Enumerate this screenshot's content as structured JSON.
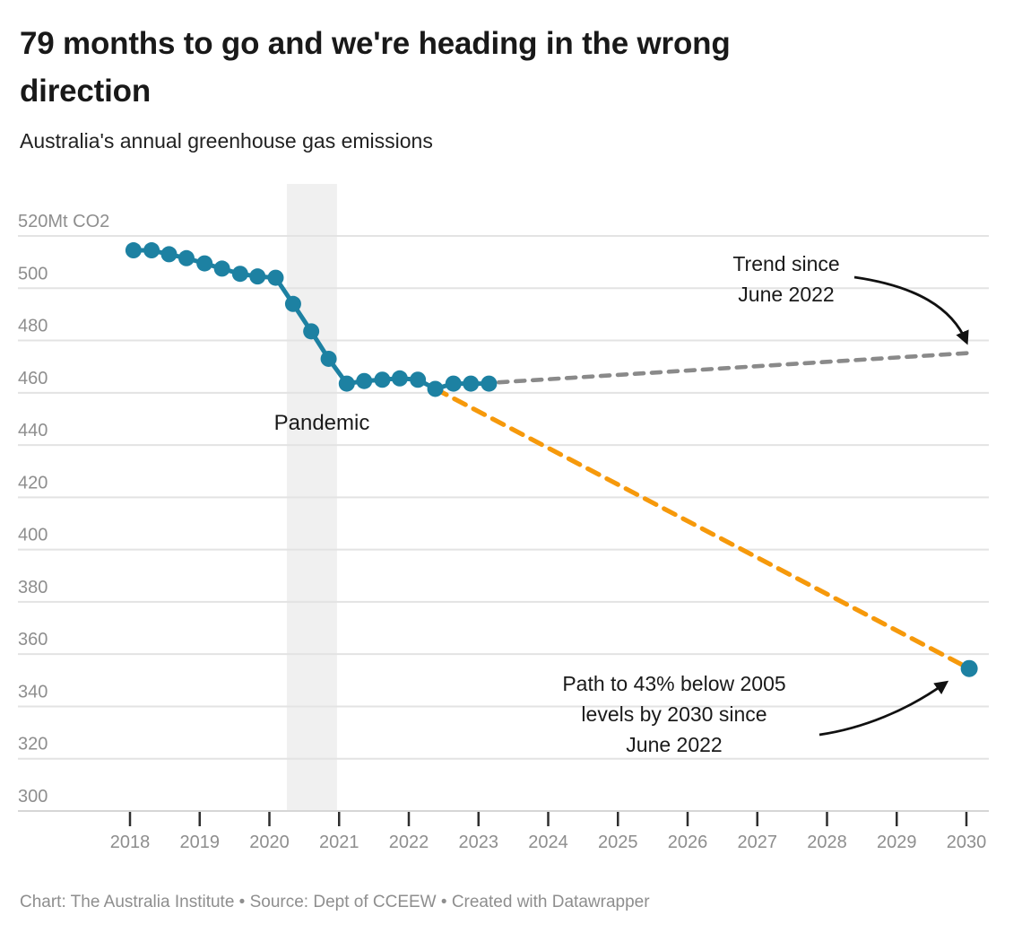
{
  "header": {
    "title": "79 months to go and we're heading in the wrong\ndirection",
    "subtitle": "Australia's annual greenhouse gas emissions"
  },
  "footer": {
    "text": "Chart: The Australia Institute • Source: Dept of CCEEW • Created with Datawrapper"
  },
  "colors": {
    "background": "#ffffff",
    "series_teal": "#1d81a2",
    "target_orange": "#f6990b",
    "trend_gray": "#8a8a8a",
    "gridline": "#e3e3e3",
    "baseline": "#d6d6d6",
    "tick": "#2e2e2e",
    "tick_label": "#8e8e8e",
    "pandemic_band": "#f0f0f0",
    "annotation_text": "#1a1a1a",
    "arrow": "#111111"
  },
  "chart_data": {
    "type": "line",
    "title": "79 months to go and we're heading in the wrong direction",
    "subtitle": "Australia's annual greenhouse gas emissions",
    "unit": "Mt CO2",
    "legend": "none",
    "grid": "horizontal",
    "x_axis": {
      "ticks": [
        2018,
        2019,
        2020,
        2021,
        2022,
        2023,
        2024,
        2025,
        2026,
        2027,
        2028,
        2029,
        2030
      ],
      "range": [
        2016.85,
        2030.35
      ]
    },
    "y_axis": {
      "ticks": [
        {
          "value": 520,
          "label": "520Mt CO2"
        },
        {
          "value": 500,
          "label": "500"
        },
        {
          "value": 480,
          "label": "480"
        },
        {
          "value": 460,
          "label": "460"
        },
        {
          "value": 440,
          "label": "440"
        },
        {
          "value": 420,
          "label": "420"
        },
        {
          "value": 400,
          "label": "400"
        },
        {
          "value": 380,
          "label": "380"
        },
        {
          "value": 360,
          "label": "360"
        },
        {
          "value": 340,
          "label": "340"
        },
        {
          "value": 320,
          "label": "320"
        },
        {
          "value": 300,
          "label": "300"
        }
      ],
      "range": [
        300,
        520
      ]
    },
    "series": [
      {
        "name": "annual-emissions-actual",
        "style": "solid-line-with-dots",
        "color": "#1d81a2",
        "points": [
          [
            2018.05,
            514.5
          ],
          [
            2018.31,
            514.5
          ],
          [
            2018.56,
            513.0
          ],
          [
            2018.81,
            511.5
          ],
          [
            2019.07,
            509.5
          ],
          [
            2019.32,
            507.5
          ],
          [
            2019.58,
            505.5
          ],
          [
            2019.83,
            504.5
          ],
          [
            2020.09,
            504.0
          ],
          [
            2020.34,
            494.0
          ],
          [
            2020.6,
            483.5
          ],
          [
            2020.85,
            473.0
          ],
          [
            2021.11,
            463.5
          ],
          [
            2021.36,
            464.5
          ],
          [
            2021.62,
            465.0
          ],
          [
            2021.87,
            465.5
          ],
          [
            2022.13,
            465.0
          ],
          [
            2022.38,
            461.5
          ],
          [
            2022.64,
            463.5
          ],
          [
            2022.89,
            463.5
          ],
          [
            2023.15,
            463.5
          ]
        ]
      },
      {
        "name": "trend-since-june-2022",
        "style": "dashed-line",
        "color": "#8a8a8a",
        "points": [
          [
            2023.29,
            464.0
          ],
          [
            2030.09,
            475.3
          ]
        ]
      },
      {
        "name": "path-to-43pct-below-2005-by-2030",
        "style": "dashed-line",
        "color": "#f6990b",
        "end_dot": true,
        "points": [
          [
            2022.38,
            461.5
          ],
          [
            2030.04,
            354.5
          ]
        ]
      }
    ],
    "annotations": {
      "pandemic_band": {
        "x_from": 2020.25,
        "x_to": 2020.97,
        "label": "Pandemic"
      },
      "trend_label": "Trend since\nJune 2022",
      "target_label": "Path to 43% below 2005\nlevels by 2030 since\nJune 2022"
    }
  }
}
